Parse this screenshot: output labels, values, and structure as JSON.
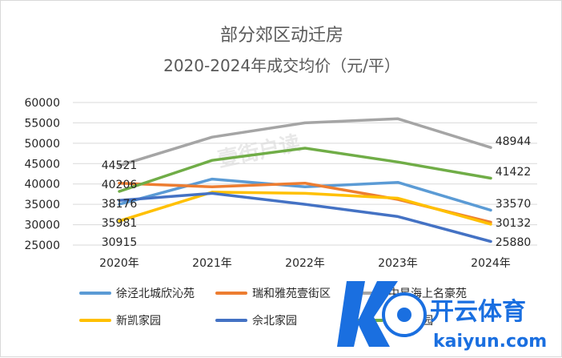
{
  "chart_data": {
    "type": "line",
    "title": "部分郊区动迁房",
    "subtitle": "2020-2024年成交均价（元/平）",
    "categories": [
      "2020年",
      "2021年",
      "2022年",
      "2023年",
      "2024年"
    ],
    "ylim": [
      25000,
      60000
    ],
    "yticks": [
      25000,
      30000,
      35000,
      40000,
      45000,
      50000,
      55000,
      60000
    ],
    "grid": true,
    "legend_position": "bottom",
    "series": [
      {
        "name": "徐泾北城欣沁苑",
        "color": "#5b9bd5",
        "values": [
          35000,
          41200,
          39300,
          40400,
          33570
        ]
      },
      {
        "name": "瑞和雅苑壹街区",
        "color": "#ed7d31",
        "values": [
          40206,
          39300,
          40200,
          36200,
          30600
        ]
      },
      {
        "name": "中星海上名豪苑",
        "color": "#a5a5a5",
        "values": [
          44521,
          51500,
          55000,
          56000,
          48944
        ]
      },
      {
        "name": "新凯家园",
        "color": "#ffc000",
        "values": [
          30915,
          38000,
          37700,
          36500,
          30132
        ]
      },
      {
        "name": "佘北家园",
        "color": "#4472c4",
        "values": [
          35981,
          37700,
          35000,
          32000,
          25880
        ]
      },
      {
        "name": "星晓家园",
        "color": "#70ad47",
        "values": [
          38176,
          45800,
          48800,
          45400,
          41422
        ]
      }
    ],
    "data_labels": [
      {
        "text": "44521",
        "series": 2,
        "point": 0
      },
      {
        "text": "40206",
        "series": 1,
        "point": 0
      },
      {
        "text": "38176",
        "series": 5,
        "point": 0
      },
      {
        "text": "35981",
        "series": 4,
        "point": 0
      },
      {
        "text": "30915",
        "series": 3,
        "point": 0
      },
      {
        "text": "48944",
        "series": 2,
        "point": 4
      },
      {
        "text": "41422",
        "series": 5,
        "point": 4
      },
      {
        "text": "33570",
        "series": 0,
        "point": 4
      },
      {
        "text": "30132",
        "series": 3,
        "point": 4
      },
      {
        "text": "25880",
        "series": 4,
        "point": 4
      }
    ]
  },
  "watermark": {
    "logo_text": "开云体育",
    "url_text": "kaiyun.com",
    "logo_color": "#1a6fe0",
    "faint_text": "壹街户读"
  }
}
